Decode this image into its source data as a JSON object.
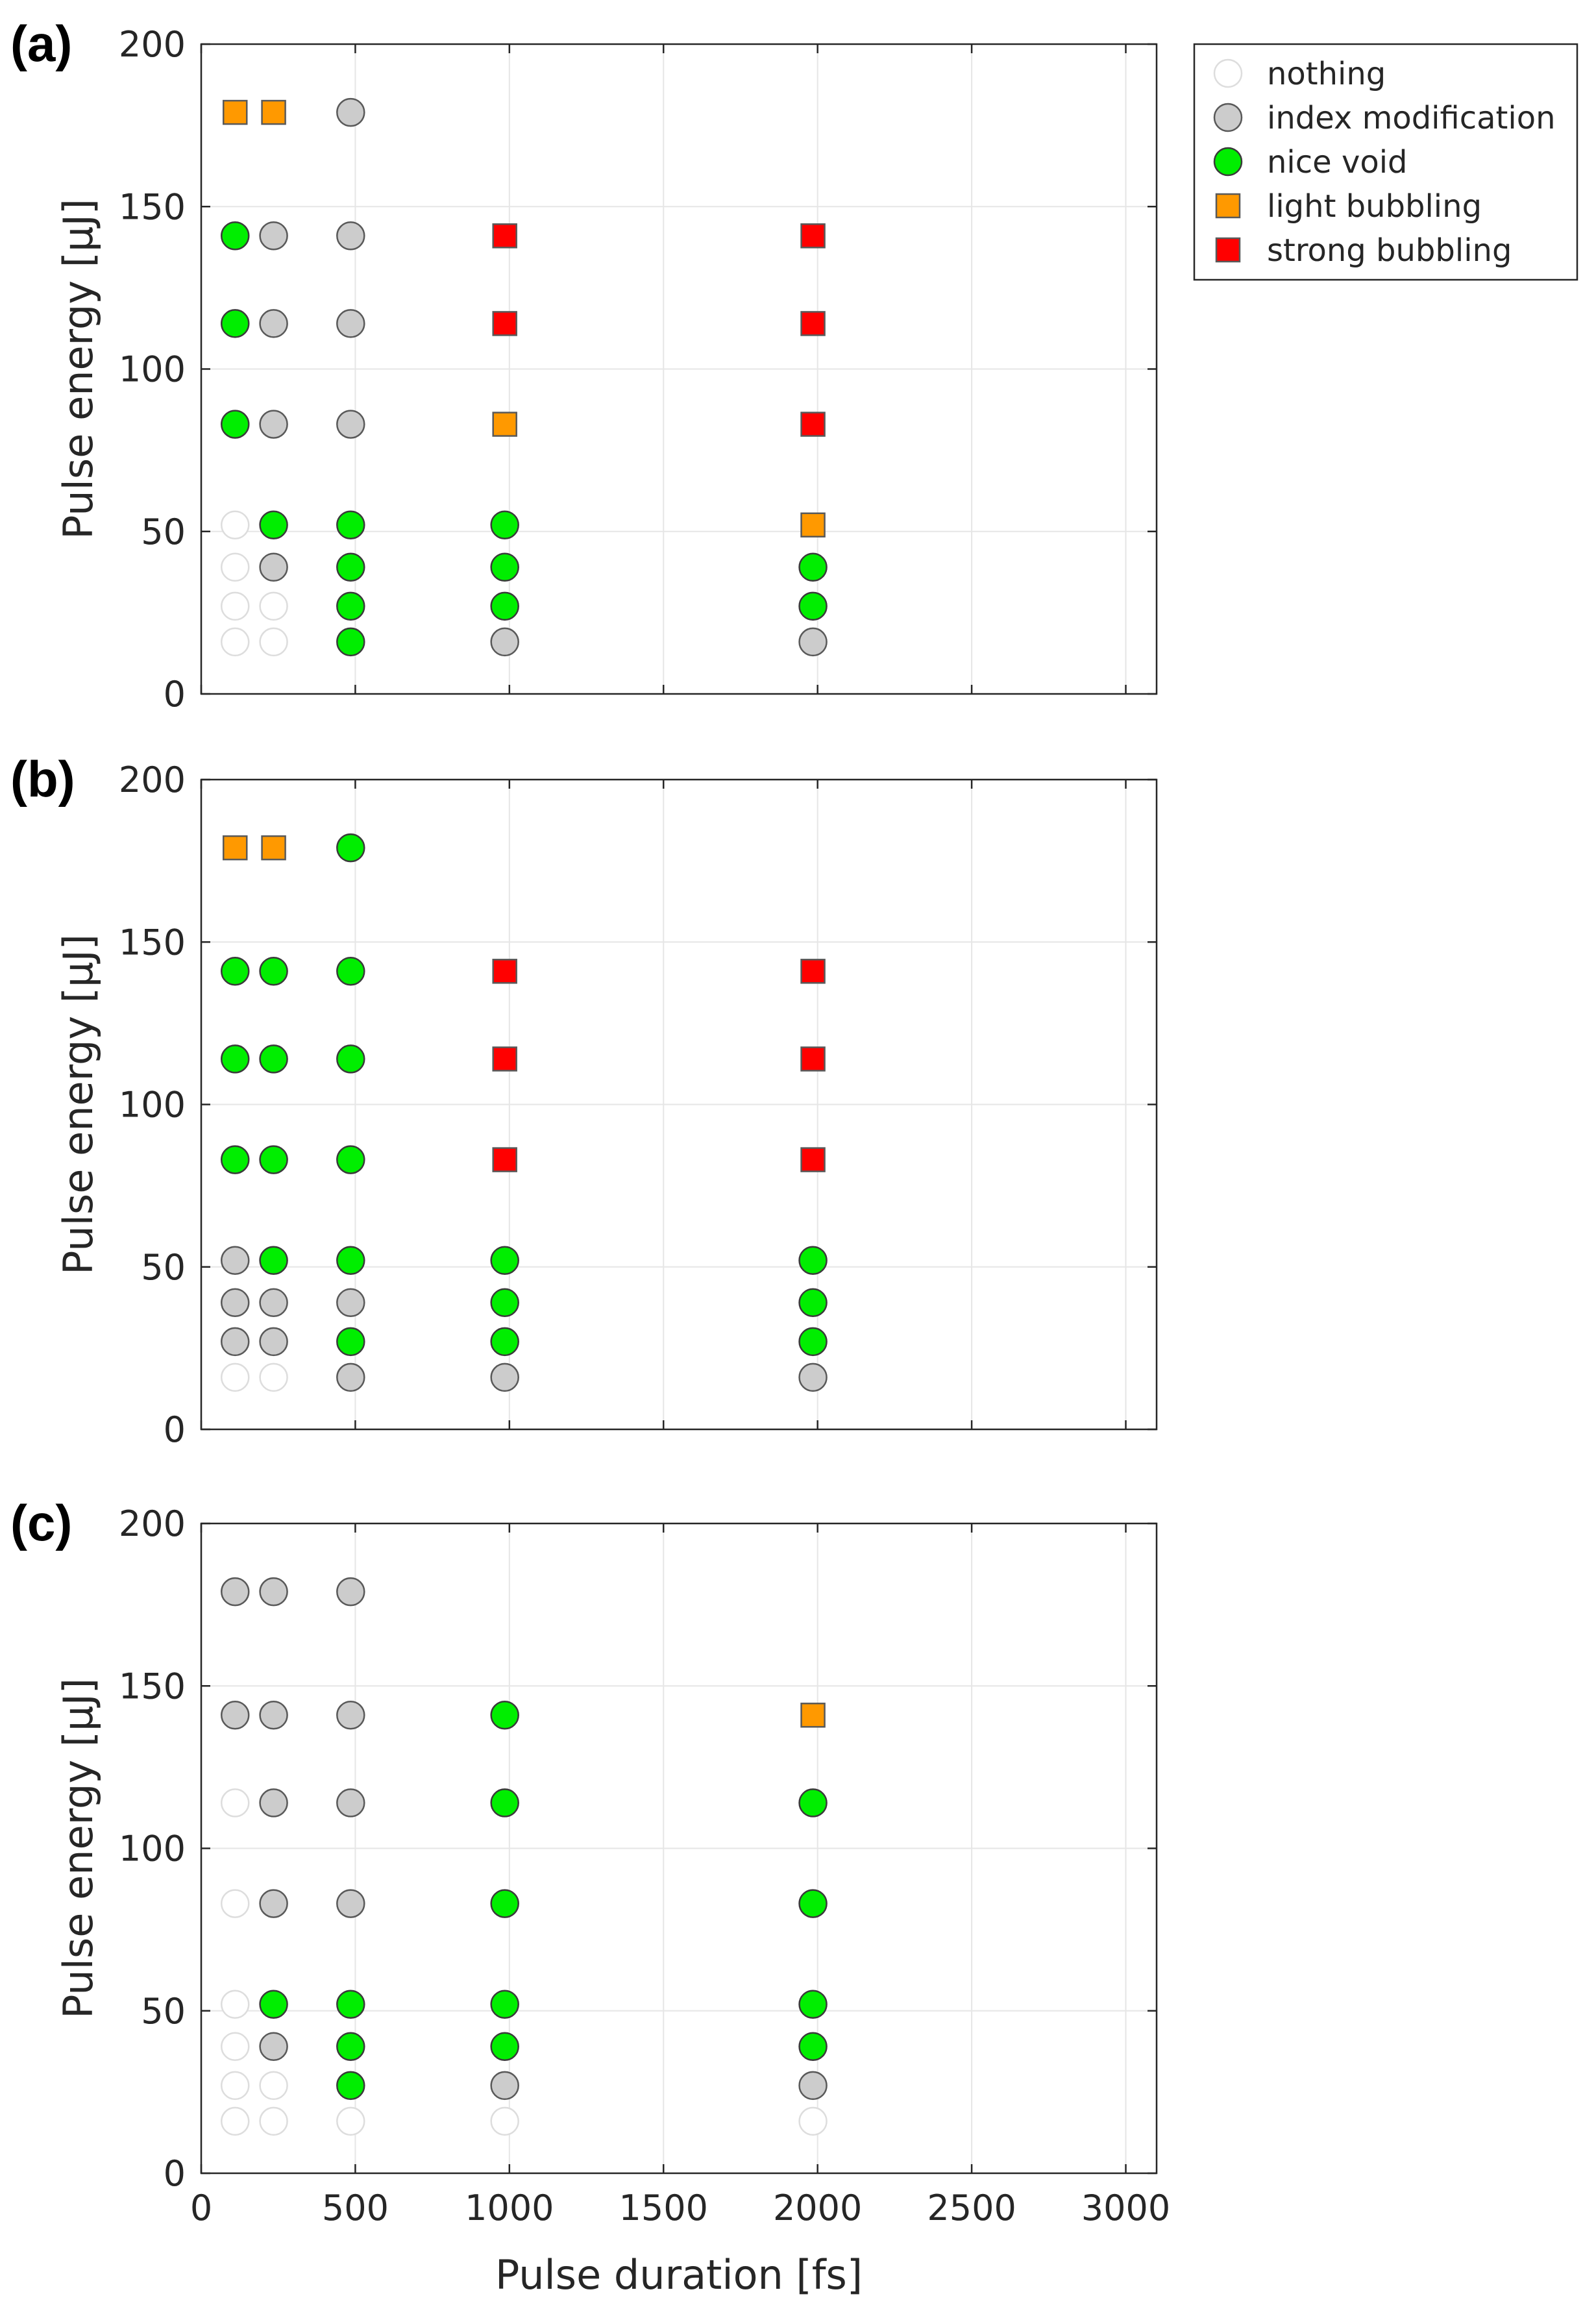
{
  "figure": {
    "xlabel": "Pulse duration [fs]",
    "ylabel": "Pulse energy [µJ]"
  },
  "categories": {
    "nothing": {
      "label": "nothing",
      "shape": "circle",
      "fill": "#ffffff",
      "stroke": "#dddddd"
    },
    "index": {
      "label": "index modification",
      "shape": "circle",
      "fill": "#cccccc",
      "stroke": "#595959"
    },
    "void": {
      "label": "nice void",
      "shape": "circle",
      "fill": "#00ee00",
      "stroke": "#3a3a3a"
    },
    "light": {
      "label": "light bubbling",
      "shape": "square",
      "fill": "#ff9900",
      "stroke": "#595959"
    },
    "strong": {
      "label": "strong bubbling",
      "shape": "square",
      "fill": "#ff0000",
      "stroke": "#595959"
    }
  },
  "legend": {
    "placement": "right of panel (a), top",
    "order": [
      "nothing",
      "index",
      "void",
      "light",
      "strong"
    ]
  },
  "chart_data": [
    {
      "panel_label": "(a)",
      "type": "scatter",
      "xlim": [
        0,
        3100
      ],
      "ylim": [
        0,
        200
      ],
      "xticks": [
        0,
        500,
        1000,
        1500,
        2000,
        2500,
        3000
      ],
      "yticks": [
        0,
        50,
        100,
        150,
        200
      ],
      "show_xtick_labels": false,
      "show_xlabel": false,
      "grid": true,
      "points": [
        {
          "x": 110,
          "y": 179,
          "c": "light"
        },
        {
          "x": 235,
          "y": 179,
          "c": "light"
        },
        {
          "x": 485,
          "y": 179,
          "c": "index"
        },
        {
          "x": 110,
          "y": 141,
          "c": "void"
        },
        {
          "x": 235,
          "y": 141,
          "c": "index"
        },
        {
          "x": 485,
          "y": 141,
          "c": "index"
        },
        {
          "x": 985,
          "y": 141,
          "c": "strong"
        },
        {
          "x": 1985,
          "y": 141,
          "c": "strong"
        },
        {
          "x": 110,
          "y": 114,
          "c": "void"
        },
        {
          "x": 235,
          "y": 114,
          "c": "index"
        },
        {
          "x": 485,
          "y": 114,
          "c": "index"
        },
        {
          "x": 985,
          "y": 114,
          "c": "strong"
        },
        {
          "x": 1985,
          "y": 114,
          "c": "strong"
        },
        {
          "x": 110,
          "y": 83,
          "c": "void"
        },
        {
          "x": 235,
          "y": 83,
          "c": "index"
        },
        {
          "x": 485,
          "y": 83,
          "c": "index"
        },
        {
          "x": 985,
          "y": 83,
          "c": "light"
        },
        {
          "x": 1985,
          "y": 83,
          "c": "strong"
        },
        {
          "x": 110,
          "y": 52,
          "c": "nothing"
        },
        {
          "x": 235,
          "y": 52,
          "c": "void"
        },
        {
          "x": 485,
          "y": 52,
          "c": "void"
        },
        {
          "x": 985,
          "y": 52,
          "c": "void"
        },
        {
          "x": 1985,
          "y": 52,
          "c": "light"
        },
        {
          "x": 110,
          "y": 39,
          "c": "nothing"
        },
        {
          "x": 235,
          "y": 39,
          "c": "index"
        },
        {
          "x": 485,
          "y": 39,
          "c": "void"
        },
        {
          "x": 985,
          "y": 39,
          "c": "void"
        },
        {
          "x": 1985,
          "y": 39,
          "c": "void"
        },
        {
          "x": 110,
          "y": 27,
          "c": "nothing"
        },
        {
          "x": 235,
          "y": 27,
          "c": "nothing"
        },
        {
          "x": 485,
          "y": 27,
          "c": "void"
        },
        {
          "x": 985,
          "y": 27,
          "c": "void"
        },
        {
          "x": 1985,
          "y": 27,
          "c": "void"
        },
        {
          "x": 110,
          "y": 16,
          "c": "nothing"
        },
        {
          "x": 235,
          "y": 16,
          "c": "nothing"
        },
        {
          "x": 485,
          "y": 16,
          "c": "void"
        },
        {
          "x": 985,
          "y": 16,
          "c": "index"
        },
        {
          "x": 1985,
          "y": 16,
          "c": "index"
        }
      ]
    },
    {
      "panel_label": "(b)",
      "type": "scatter",
      "xlim": [
        0,
        3100
      ],
      "ylim": [
        0,
        200
      ],
      "xticks": [
        0,
        500,
        1000,
        1500,
        2000,
        2500,
        3000
      ],
      "yticks": [
        0,
        50,
        100,
        150,
        200
      ],
      "show_xtick_labels": false,
      "show_xlabel": false,
      "grid": true,
      "points": [
        {
          "x": 110,
          "y": 179,
          "c": "light"
        },
        {
          "x": 235,
          "y": 179,
          "c": "light"
        },
        {
          "x": 485,
          "y": 179,
          "c": "void"
        },
        {
          "x": 110,
          "y": 141,
          "c": "void"
        },
        {
          "x": 235,
          "y": 141,
          "c": "void"
        },
        {
          "x": 485,
          "y": 141,
          "c": "void"
        },
        {
          "x": 985,
          "y": 141,
          "c": "strong"
        },
        {
          "x": 1985,
          "y": 141,
          "c": "strong"
        },
        {
          "x": 110,
          "y": 114,
          "c": "void"
        },
        {
          "x": 235,
          "y": 114,
          "c": "void"
        },
        {
          "x": 485,
          "y": 114,
          "c": "void"
        },
        {
          "x": 985,
          "y": 114,
          "c": "strong"
        },
        {
          "x": 1985,
          "y": 114,
          "c": "strong"
        },
        {
          "x": 110,
          "y": 83,
          "c": "void"
        },
        {
          "x": 235,
          "y": 83,
          "c": "void"
        },
        {
          "x": 485,
          "y": 83,
          "c": "void"
        },
        {
          "x": 985,
          "y": 83,
          "c": "strong"
        },
        {
          "x": 1985,
          "y": 83,
          "c": "strong"
        },
        {
          "x": 110,
          "y": 52,
          "c": "index"
        },
        {
          "x": 235,
          "y": 52,
          "c": "void"
        },
        {
          "x": 485,
          "y": 52,
          "c": "void"
        },
        {
          "x": 985,
          "y": 52,
          "c": "void"
        },
        {
          "x": 1985,
          "y": 52,
          "c": "void"
        },
        {
          "x": 110,
          "y": 39,
          "c": "index"
        },
        {
          "x": 235,
          "y": 39,
          "c": "index"
        },
        {
          "x": 485,
          "y": 39,
          "c": "index"
        },
        {
          "x": 985,
          "y": 39,
          "c": "void"
        },
        {
          "x": 1985,
          "y": 39,
          "c": "void"
        },
        {
          "x": 110,
          "y": 27,
          "c": "index"
        },
        {
          "x": 235,
          "y": 27,
          "c": "index"
        },
        {
          "x": 485,
          "y": 27,
          "c": "void"
        },
        {
          "x": 985,
          "y": 27,
          "c": "void"
        },
        {
          "x": 1985,
          "y": 27,
          "c": "void"
        },
        {
          "x": 110,
          "y": 16,
          "c": "nothing"
        },
        {
          "x": 235,
          "y": 16,
          "c": "nothing"
        },
        {
          "x": 485,
          "y": 16,
          "c": "index"
        },
        {
          "x": 985,
          "y": 16,
          "c": "index"
        },
        {
          "x": 1985,
          "y": 16,
          "c": "index"
        }
      ]
    },
    {
      "panel_label": "(c)",
      "type": "scatter",
      "xlim": [
        0,
        3100
      ],
      "ylim": [
        0,
        200
      ],
      "xticks": [
        0,
        500,
        1000,
        1500,
        2000,
        2500,
        3000
      ],
      "yticks": [
        0,
        50,
        100,
        150,
        200
      ],
      "show_xtick_labels": true,
      "show_xlabel": true,
      "grid": true,
      "points": [
        {
          "x": 110,
          "y": 179,
          "c": "index"
        },
        {
          "x": 235,
          "y": 179,
          "c": "index"
        },
        {
          "x": 485,
          "y": 179,
          "c": "index"
        },
        {
          "x": 110,
          "y": 141,
          "c": "index"
        },
        {
          "x": 235,
          "y": 141,
          "c": "index"
        },
        {
          "x": 485,
          "y": 141,
          "c": "index"
        },
        {
          "x": 985,
          "y": 141,
          "c": "void"
        },
        {
          "x": 1985,
          "y": 141,
          "c": "light"
        },
        {
          "x": 110,
          "y": 114,
          "c": "nothing"
        },
        {
          "x": 235,
          "y": 114,
          "c": "index"
        },
        {
          "x": 485,
          "y": 114,
          "c": "index"
        },
        {
          "x": 985,
          "y": 114,
          "c": "void"
        },
        {
          "x": 1985,
          "y": 114,
          "c": "void"
        },
        {
          "x": 110,
          "y": 83,
          "c": "nothing"
        },
        {
          "x": 235,
          "y": 83,
          "c": "index"
        },
        {
          "x": 485,
          "y": 83,
          "c": "index"
        },
        {
          "x": 985,
          "y": 83,
          "c": "void"
        },
        {
          "x": 1985,
          "y": 83,
          "c": "void"
        },
        {
          "x": 110,
          "y": 52,
          "c": "nothing"
        },
        {
          "x": 235,
          "y": 52,
          "c": "void"
        },
        {
          "x": 485,
          "y": 52,
          "c": "void"
        },
        {
          "x": 985,
          "y": 52,
          "c": "void"
        },
        {
          "x": 1985,
          "y": 52,
          "c": "void"
        },
        {
          "x": 110,
          "y": 39,
          "c": "nothing"
        },
        {
          "x": 235,
          "y": 39,
          "c": "index"
        },
        {
          "x": 485,
          "y": 39,
          "c": "void"
        },
        {
          "x": 985,
          "y": 39,
          "c": "void"
        },
        {
          "x": 1985,
          "y": 39,
          "c": "void"
        },
        {
          "x": 110,
          "y": 27,
          "c": "nothing"
        },
        {
          "x": 235,
          "y": 27,
          "c": "nothing"
        },
        {
          "x": 485,
          "y": 27,
          "c": "void"
        },
        {
          "x": 985,
          "y": 27,
          "c": "index"
        },
        {
          "x": 1985,
          "y": 27,
          "c": "index"
        },
        {
          "x": 110,
          "y": 16,
          "c": "nothing"
        },
        {
          "x": 235,
          "y": 16,
          "c": "nothing"
        },
        {
          "x": 485,
          "y": 16,
          "c": "nothing"
        },
        {
          "x": 985,
          "y": 16,
          "c": "nothing"
        },
        {
          "x": 1985,
          "y": 16,
          "c": "nothing"
        }
      ]
    }
  ]
}
